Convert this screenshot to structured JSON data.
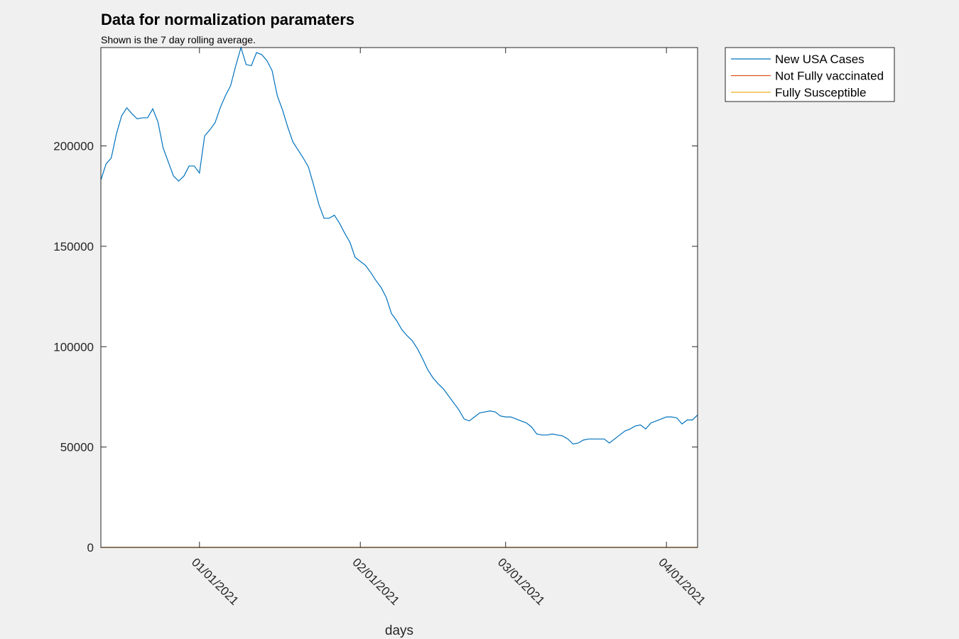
{
  "chart_data": {
    "type": "line",
    "title": "Data for normalization paramaters",
    "subtitle": "Shown is the 7 day rolling average.",
    "xlabel": "days",
    "ylabel": "",
    "x_start": "2020-12-13",
    "x_end": "2021-04-07",
    "ylim": [
      0,
      249000
    ],
    "yticks": [
      0,
      50000,
      100000,
      150000,
      200000
    ],
    "ytick_labels": [
      "0",
      "50000",
      "100000",
      "150000",
      "200000"
    ],
    "xticks": [
      "2021-01-01",
      "2021-02-01",
      "2021-03-01",
      "2021-04-01"
    ],
    "xtick_labels": [
      "01/01/2021",
      "02/01/2021",
      "03/01/2021",
      "04/01/2021"
    ],
    "legend_position": "outside top-right",
    "grid": false,
    "series": [
      {
        "name": "New USA Cases",
        "color": "#0072bd",
        "points": [
          [
            "2020-12-13",
            183000
          ],
          [
            "2020-12-14",
            191000
          ],
          [
            "2020-12-15",
            194000
          ],
          [
            "2020-12-16",
            206000
          ],
          [
            "2020-12-17",
            215000
          ],
          [
            "2020-12-18",
            219000
          ],
          [
            "2020-12-19",
            216000
          ],
          [
            "2020-12-20",
            213500
          ],
          [
            "2020-12-21",
            214000
          ],
          [
            "2020-12-22",
            214000
          ],
          [
            "2020-12-23",
            218500
          ],
          [
            "2020-12-24",
            212000
          ],
          [
            "2020-12-25",
            199000
          ],
          [
            "2020-12-26",
            192000
          ],
          [
            "2020-12-27",
            185000
          ],
          [
            "2020-12-28",
            182500
          ],
          [
            "2020-12-29",
            185000
          ],
          [
            "2020-12-30",
            190000
          ],
          [
            "2020-12-31",
            190000
          ],
          [
            "2021-01-01",
            186500
          ],
          [
            "2021-01-02",
            205000
          ],
          [
            "2021-01-03",
            208000
          ],
          [
            "2021-01-04",
            211500
          ],
          [
            "2021-01-05",
            219000
          ],
          [
            "2021-01-06",
            225000
          ],
          [
            "2021-01-07",
            230000
          ],
          [
            "2021-01-08",
            240000
          ],
          [
            "2021-01-09",
            249000
          ],
          [
            "2021-01-10",
            240500
          ],
          [
            "2021-01-11",
            240000
          ],
          [
            "2021-01-12",
            246500
          ],
          [
            "2021-01-13",
            245500
          ],
          [
            "2021-01-14",
            242500
          ],
          [
            "2021-01-15",
            237500
          ],
          [
            "2021-01-16",
            225000
          ],
          [
            "2021-01-17",
            218000
          ],
          [
            "2021-01-18",
            209500
          ],
          [
            "2021-01-19",
            202000
          ],
          [
            "2021-01-20",
            198000
          ],
          [
            "2021-01-21",
            194000
          ],
          [
            "2021-01-22",
            189500
          ],
          [
            "2021-01-23",
            180500
          ],
          [
            "2021-01-24",
            171000
          ],
          [
            "2021-01-25",
            164000
          ],
          [
            "2021-01-26",
            164000
          ],
          [
            "2021-01-27",
            165500
          ],
          [
            "2021-01-28",
            161500
          ],
          [
            "2021-01-29",
            156500
          ],
          [
            "2021-01-30",
            152000
          ],
          [
            "2021-01-31",
            144500
          ],
          [
            "2021-02-01",
            142500
          ],
          [
            "2021-02-02",
            140500
          ],
          [
            "2021-02-03",
            137000
          ],
          [
            "2021-02-04",
            133000
          ],
          [
            "2021-02-05",
            129500
          ],
          [
            "2021-02-06",
            124500
          ],
          [
            "2021-02-07",
            116500
          ],
          [
            "2021-02-08",
            113000
          ],
          [
            "2021-02-09",
            108500
          ],
          [
            "2021-02-10",
            105500
          ],
          [
            "2021-02-11",
            103000
          ],
          [
            "2021-02-12",
            99000
          ],
          [
            "2021-02-13",
            94000
          ],
          [
            "2021-02-14",
            88500
          ],
          [
            "2021-02-15",
            84500
          ],
          [
            "2021-02-16",
            81500
          ],
          [
            "2021-02-17",
            79000
          ],
          [
            "2021-02-18",
            75500
          ],
          [
            "2021-02-19",
            72000
          ],
          [
            "2021-02-20",
            68500
          ],
          [
            "2021-02-21",
            64000
          ],
          [
            "2021-02-22",
            63000
          ],
          [
            "2021-02-23",
            65000
          ],
          [
            "2021-02-24",
            67000
          ],
          [
            "2021-02-25",
            67500
          ],
          [
            "2021-02-26",
            68000
          ],
          [
            "2021-02-27",
            67500
          ],
          [
            "2021-02-28",
            65500
          ],
          [
            "2021-03-01",
            65000
          ],
          [
            "2021-03-02",
            65000
          ],
          [
            "2021-03-03",
            64000
          ],
          [
            "2021-03-04",
            63000
          ],
          [
            "2021-03-05",
            62000
          ],
          [
            "2021-03-06",
            60000
          ],
          [
            "2021-03-07",
            56500
          ],
          [
            "2021-03-08",
            56000
          ],
          [
            "2021-03-09",
            56000
          ],
          [
            "2021-03-10",
            56500
          ],
          [
            "2021-03-11",
            56000
          ],
          [
            "2021-03-12",
            55500
          ],
          [
            "2021-03-13",
            54000
          ],
          [
            "2021-03-14",
            51500
          ],
          [
            "2021-03-15",
            52000
          ],
          [
            "2021-03-16",
            53500
          ],
          [
            "2021-03-17",
            54000
          ],
          [
            "2021-03-18",
            54000
          ],
          [
            "2021-03-19",
            54000
          ],
          [
            "2021-03-20",
            54000
          ],
          [
            "2021-03-21",
            52000
          ],
          [
            "2021-03-22",
            54000
          ],
          [
            "2021-03-23",
            56000
          ],
          [
            "2021-03-24",
            58000
          ],
          [
            "2021-03-25",
            59000
          ],
          [
            "2021-03-26",
            60500
          ],
          [
            "2021-03-27",
            61000
          ],
          [
            "2021-03-28",
            59000
          ],
          [
            "2021-03-29",
            62000
          ],
          [
            "2021-03-30",
            63000
          ],
          [
            "2021-03-31",
            64000
          ],
          [
            "2021-04-01",
            65000
          ],
          [
            "2021-04-02",
            65000
          ],
          [
            "2021-04-03",
            64500
          ],
          [
            "2021-04-04",
            61500
          ],
          [
            "2021-04-05",
            63500
          ],
          [
            "2021-04-06",
            63500
          ],
          [
            "2021-04-07",
            66000
          ]
        ]
      },
      {
        "name": "Not Fully vaccinated",
        "color": "#d95319",
        "points": [
          [
            "2020-12-13",
            0
          ],
          [
            "2021-04-07",
            0
          ]
        ]
      },
      {
        "name": "Fully Susceptible",
        "color": "#edb120",
        "points": [
          [
            "2020-12-13",
            0
          ],
          [
            "2021-04-07",
            0
          ]
        ]
      }
    ]
  }
}
